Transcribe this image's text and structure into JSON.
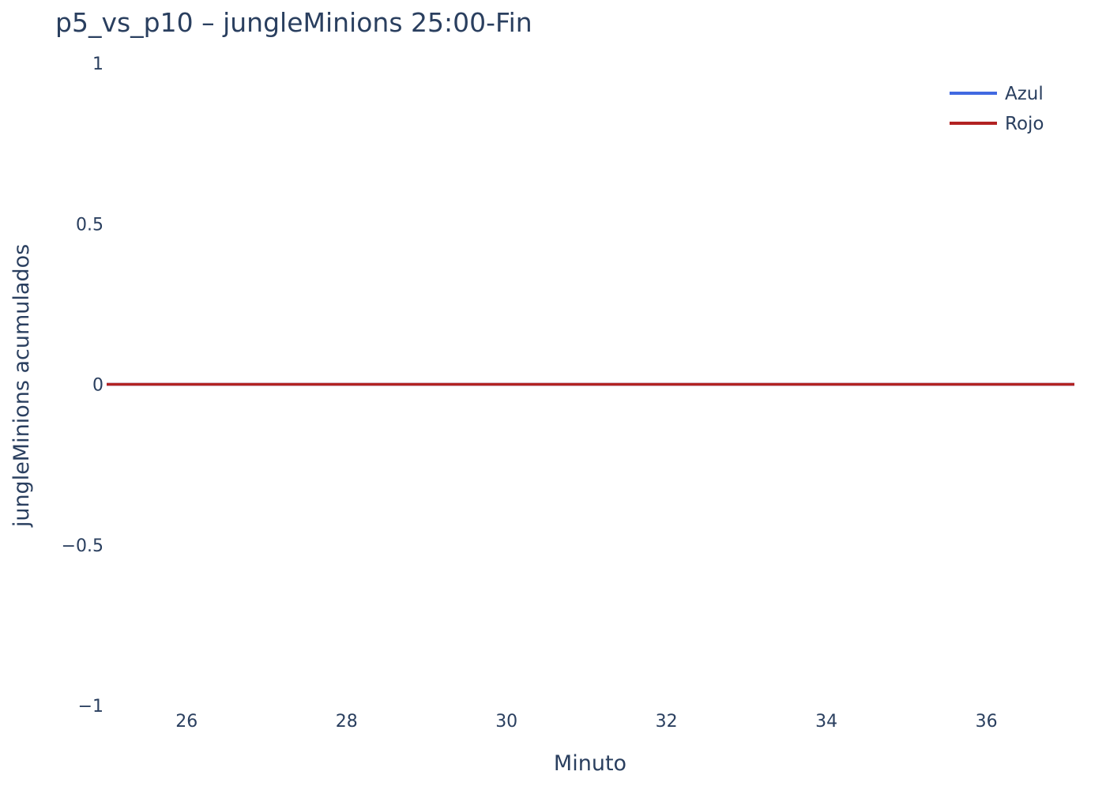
{
  "chart_data": {
    "type": "line",
    "title": "p5_vs_p10 – jungleMinions 25:00-Fin",
    "xlabel": "Minuto",
    "ylabel": "jungleMinions acumulados",
    "xlim": [
      25,
      37.1
    ],
    "ylim": [
      -1,
      1
    ],
    "x_ticks": [
      26,
      28,
      30,
      32,
      34,
      36
    ],
    "y_ticks": [
      1,
      0.5,
      0,
      -0.5,
      -1
    ],
    "y_tick_labels": [
      "1",
      "0.5",
      "0",
      "−0.5",
      "−1"
    ],
    "grid": false,
    "legend_position": "top-right",
    "series": [
      {
        "name": "Azul",
        "color": "#4169e1",
        "x": [
          25,
          26,
          27,
          28,
          29,
          30,
          31,
          32,
          33,
          34,
          35,
          36,
          37,
          37.1
        ],
        "y": [
          0,
          0,
          0,
          0,
          0,
          0,
          0,
          0,
          0,
          0,
          0,
          0,
          0,
          0
        ]
      },
      {
        "name": "Rojo",
        "color": "#b22222",
        "x": [
          25,
          26,
          27,
          28,
          29,
          30,
          31,
          32,
          33,
          34,
          35,
          36,
          37,
          37.1
        ],
        "y": [
          0,
          0,
          0,
          0,
          0,
          0,
          0,
          0,
          0,
          0,
          0,
          0,
          0,
          0
        ]
      }
    ]
  }
}
